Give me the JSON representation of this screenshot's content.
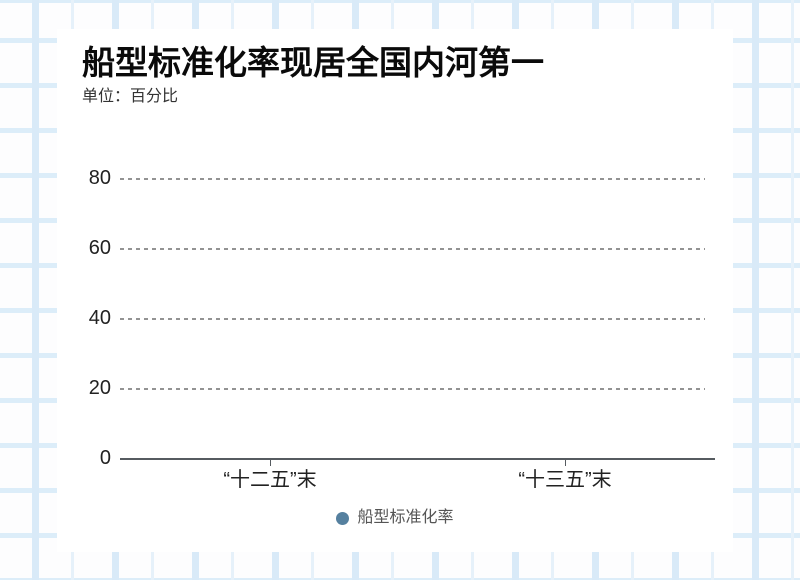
{
  "header": {
    "title": "船型标准化率现居全国内河第一",
    "unit_label": "单位：百分比"
  },
  "chart_data": {
    "type": "bar",
    "title": "船型标准化率现居全国内河第一",
    "unit": "百分比",
    "categories": [
      "“十二五”末",
      "“十三五”末"
    ],
    "series": [
      {
        "name": "船型标准化率",
        "color": "#55809f",
        "values": [
          null,
          null
        ]
      }
    ],
    "bars_rendered": false,
    "y_ticks": [
      0,
      20,
      40,
      60,
      80
    ],
    "ylim": [
      0,
      88
    ],
    "xlabel": "",
    "ylabel": "",
    "grid": "horizontal-dashed",
    "legend_position": "bottom-center"
  },
  "colors": {
    "title_color": "#0a0a0a",
    "subtitle_color": "#333333",
    "axis_line": "#565b60",
    "gridline_dash": "#939393",
    "tick_label": "#222222",
    "legend_text": "#555555",
    "legend_dot": "#55809f",
    "card_bg": "#ffffff",
    "bg_grid_thick": "#d9eaf8",
    "bg_grid_thin": "#e6f1fa",
    "bg_grid_horizontal": "#dcedf9"
  }
}
